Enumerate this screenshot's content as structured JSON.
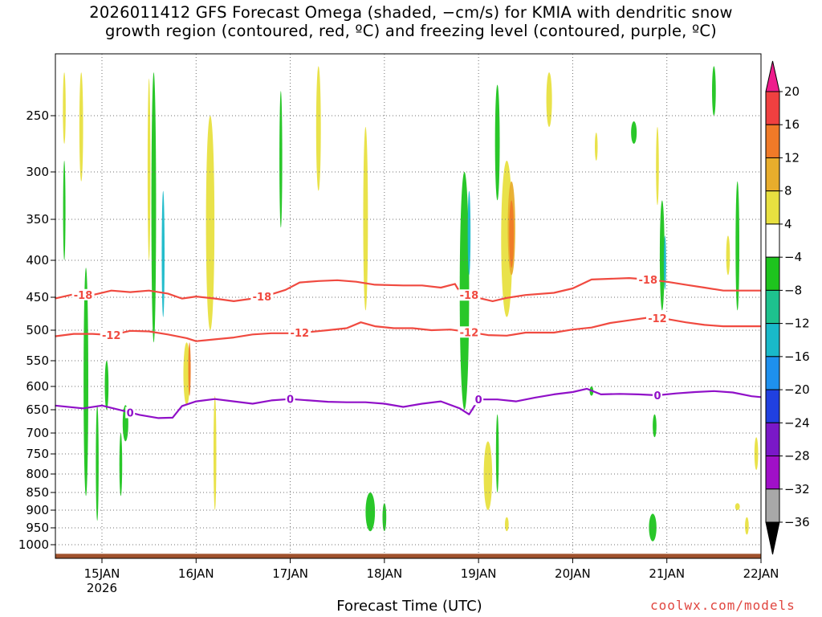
{
  "title": {
    "line1": "2026011412 GFS Forecast Omega (shaded, −cm/s) for KMIA with dendritic snow",
    "line2": "growth region (contoured, red, ºC) and freezing level (contoured, purple, ºC)"
  },
  "xlabel": "Forecast Time (UTC)",
  "credit": "coolwx.com/models",
  "chart_data": {
    "type": "heatmap",
    "title": "2026011412 GFS Forecast Omega (shaded, −cm/s) for KMIA with dendritic snow growth region (contoured, red, ºC) and freezing level (contoured, purple, ºC)",
    "xlabel": "Forecast Time (UTC)",
    "ylabel": "",
    "x_ticks": [
      "15JAN",
      "16JAN",
      "17JAN",
      "18JAN",
      "19JAN",
      "20JAN",
      "21JAN",
      "22JAN"
    ],
    "x_year_label": "2026",
    "x_range_days": [
      14.5,
      22.0
    ],
    "y_ticks": [
      250,
      300,
      350,
      400,
      450,
      500,
      550,
      600,
      650,
      700,
      750,
      800,
      850,
      900,
      950,
      1000
    ],
    "y_range_hpa": [
      200,
      1015
    ],
    "grid": true,
    "colorbar": {
      "labels": [
        "20",
        "16",
        "12",
        "8",
        "4",
        "−4",
        "−8",
        "−12",
        "−16",
        "−20",
        "−24",
        "−28",
        "−32",
        "−36"
      ],
      "colors": [
        "#ee1c8c",
        "#f04040",
        "#f07a28",
        "#e8ad2c",
        "#e8e040",
        "#ffffff",
        "#1ec41e",
        "#1ec28e",
        "#19b9c9",
        "#1e90ee",
        "#2040e0",
        "#7a18c8",
        "#a010c8",
        "#a8a8a8",
        "#000000"
      ]
    },
    "contours": [
      {
        "name": "-18",
        "color": "#f04a40",
        "points": [
          [
            14.5,
            452
          ],
          [
            14.7,
            446
          ],
          [
            14.9,
            447
          ],
          [
            15.1,
            441
          ],
          [
            15.3,
            443
          ],
          [
            15.5,
            441
          ],
          [
            15.7,
            445
          ],
          [
            15.85,
            452
          ],
          [
            16.0,
            449
          ],
          [
            16.2,
            452
          ],
          [
            16.4,
            456
          ],
          [
            16.6,
            452
          ],
          [
            16.8,
            446
          ],
          [
            16.95,
            440
          ],
          [
            17.1,
            430
          ],
          [
            17.3,
            428
          ],
          [
            17.5,
            427
          ],
          [
            17.7,
            429
          ],
          [
            17.9,
            433
          ],
          [
            18.2,
            434
          ],
          [
            18.4,
            434
          ],
          [
            18.6,
            437
          ],
          [
            18.75,
            432
          ],
          [
            18.8,
            443
          ],
          [
            19.0,
            451
          ],
          [
            19.15,
            456
          ],
          [
            19.3,
            451
          ],
          [
            19.5,
            447
          ],
          [
            19.8,
            444
          ],
          [
            20.0,
            438
          ],
          [
            20.2,
            426
          ],
          [
            20.4,
            425
          ],
          [
            20.6,
            424
          ],
          [
            20.8,
            426
          ],
          [
            21.0,
            429
          ],
          [
            21.2,
            433
          ],
          [
            21.4,
            437
          ],
          [
            21.6,
            441
          ],
          [
            21.8,
            441
          ],
          [
            22.0,
            441
          ]
        ],
        "labels": [
          [
            14.8,
            "-18"
          ],
          [
            16.7,
            "-18"
          ],
          [
            18.9,
            "-18"
          ],
          [
            20.8,
            "-18"
          ]
        ]
      },
      {
        "name": "-12",
        "color": "#f04a40",
        "points": [
          [
            14.5,
            510
          ],
          [
            14.7,
            506
          ],
          [
            14.9,
            506
          ],
          [
            15.1,
            508
          ],
          [
            15.3,
            501
          ],
          [
            15.5,
            502
          ],
          [
            15.7,
            507
          ],
          [
            15.9,
            513
          ],
          [
            16.0,
            518
          ],
          [
            16.2,
            515
          ],
          [
            16.4,
            512
          ],
          [
            16.6,
            507
          ],
          [
            16.8,
            505
          ],
          [
            17.0,
            505
          ],
          [
            17.2,
            503
          ],
          [
            17.4,
            500
          ],
          [
            17.6,
            497
          ],
          [
            17.75,
            488
          ],
          [
            17.9,
            494
          ],
          [
            18.1,
            497
          ],
          [
            18.3,
            497
          ],
          [
            18.5,
            500
          ],
          [
            18.7,
            499
          ],
          [
            18.9,
            503
          ],
          [
            19.1,
            508
          ],
          [
            19.3,
            509
          ],
          [
            19.5,
            504
          ],
          [
            19.8,
            504
          ],
          [
            20.0,
            499
          ],
          [
            20.2,
            496
          ],
          [
            20.4,
            489
          ],
          [
            20.6,
            485
          ],
          [
            20.8,
            481
          ],
          [
            21.0,
            483
          ],
          [
            21.2,
            488
          ],
          [
            21.4,
            492
          ],
          [
            21.6,
            494
          ],
          [
            22.0,
            494
          ]
        ],
        "labels": [
          [
            15.1,
            "-12"
          ],
          [
            17.1,
            "-12"
          ],
          [
            18.9,
            "-12"
          ],
          [
            20.9,
            "-12"
          ]
        ]
      },
      {
        "name": "0",
        "color": "#9010c8",
        "points": [
          [
            14.5,
            641
          ],
          [
            14.8,
            647
          ],
          [
            15.0,
            641
          ],
          [
            15.2,
            651
          ],
          [
            15.4,
            661
          ],
          [
            15.6,
            668
          ],
          [
            15.75,
            667
          ],
          [
            15.85,
            642
          ],
          [
            16.0,
            632
          ],
          [
            16.2,
            627
          ],
          [
            16.4,
            632
          ],
          [
            16.6,
            637
          ],
          [
            16.8,
            630
          ],
          [
            17.0,
            627
          ],
          [
            17.2,
            630
          ],
          [
            17.4,
            633
          ],
          [
            17.6,
            634
          ],
          [
            17.8,
            634
          ],
          [
            18.0,
            637
          ],
          [
            18.2,
            644
          ],
          [
            18.4,
            637
          ],
          [
            18.6,
            632
          ],
          [
            18.8,
            647
          ],
          [
            18.9,
            660
          ],
          [
            19.0,
            628
          ],
          [
            19.2,
            628
          ],
          [
            19.4,
            632
          ],
          [
            19.6,
            624
          ],
          [
            19.8,
            617
          ],
          [
            20.0,
            612
          ],
          [
            20.15,
            605
          ],
          [
            20.3,
            617
          ],
          [
            20.5,
            616
          ],
          [
            20.7,
            617
          ],
          [
            20.9,
            619
          ],
          [
            21.1,
            615
          ],
          [
            21.3,
            612
          ],
          [
            21.5,
            610
          ],
          [
            21.7,
            613
          ],
          [
            21.9,
            621
          ],
          [
            22.0,
            623
          ]
        ],
        "labels": [
          [
            15.3,
            "0"
          ],
          [
            17.0,
            "0"
          ],
          [
            19.0,
            "0"
          ],
          [
            20.9,
            "0"
          ]
        ]
      }
    ],
    "shaded_regions": [
      {
        "x": 14.6,
        "p": [
          215,
          275
        ],
        "c": "#e8e040",
        "w": 0.03
      },
      {
        "x": 14.6,
        "p": [
          290,
          400
        ],
        "c": "#1ec41e",
        "w": 0.02
      },
      {
        "x": 14.78,
        "p": [
          215,
          310
        ],
        "c": "#e8e040",
        "w": 0.04
      },
      {
        "x": 14.83,
        "p": [
          410,
          860
        ],
        "c": "#1ec41e",
        "w": 0.05
      },
      {
        "x": 14.95,
        "p": [
          640,
          930
        ],
        "c": "#1ec41e",
        "w": 0.03
      },
      {
        "x": 15.05,
        "p": [
          550,
          650
        ],
        "c": "#1ec41e",
        "w": 0.04
      },
      {
        "x": 15.2,
        "p": [
          700,
          860
        ],
        "c": "#1ec41e",
        "w": 0.03
      },
      {
        "x": 15.25,
        "p": [
          640,
          720
        ],
        "c": "#1ec41e",
        "w": 0.06
      },
      {
        "x": 15.55,
        "p": [
          215,
          520
        ],
        "c": "#1ec41e",
        "w": 0.05
      },
      {
        "x": 15.65,
        "p": [
          320,
          480
        ],
        "c": "#19b9c9",
        "w": 0.03
      },
      {
        "x": 15.5,
        "p": [
          220,
          400
        ],
        "c": "#e8e040",
        "w": 0.03
      },
      {
        "x": 15.9,
        "p": [
          520,
          640
        ],
        "c": "#e8e040",
        "w": 0.07
      },
      {
        "x": 15.93,
        "p": [
          520,
          620
        ],
        "c": "#f07a28",
        "w": 0.02
      },
      {
        "x": 16.15,
        "p": [
          250,
          500
        ],
        "c": "#e8e040",
        "w": 0.09
      },
      {
        "x": 16.2,
        "p": [
          620,
          900
        ],
        "c": "#e8e040",
        "w": 0.03
      },
      {
        "x": 16.9,
        "p": [
          230,
          360
        ],
        "c": "#1ec41e",
        "w": 0.03
      },
      {
        "x": 17.3,
        "p": [
          210,
          320
        ],
        "c": "#e8e040",
        "w": 0.05
      },
      {
        "x": 17.8,
        "p": [
          260,
          470
        ],
        "c": "#e8e040",
        "w": 0.05
      },
      {
        "x": 17.85,
        "p": [
          850,
          960
        ],
        "c": "#1ec41e",
        "w": 0.1
      },
      {
        "x": 18.0,
        "p": [
          880,
          960
        ],
        "c": "#1ec41e",
        "w": 0.04
      },
      {
        "x": 18.85,
        "p": [
          300,
          650
        ],
        "c": "#1ec41e",
        "w": 0.1
      },
      {
        "x": 18.9,
        "p": [
          320,
          420
        ],
        "c": "#19b9c9",
        "w": 0.03
      },
      {
        "x": 19.1,
        "p": [
          720,
          900
        ],
        "c": "#e8e040",
        "w": 0.09
      },
      {
        "x": 19.3,
        "p": [
          290,
          480
        ],
        "c": "#e8e040",
        "w": 0.12
      },
      {
        "x": 19.35,
        "p": [
          310,
          420
        ],
        "c": "#e8ad2c",
        "w": 0.08
      },
      {
        "x": 19.35,
        "p": [
          330,
          410
        ],
        "c": "#f07a28",
        "w": 0.05
      },
      {
        "x": 19.2,
        "p": [
          225,
          330
        ],
        "c": "#1ec41e",
        "w": 0.05
      },
      {
        "x": 19.3,
        "p": [
          920,
          960
        ],
        "c": "#e8e040",
        "w": 0.04
      },
      {
        "x": 19.2,
        "p": [
          660,
          850
        ],
        "c": "#1ec41e",
        "w": 0.03
      },
      {
        "x": 19.75,
        "p": [
          215,
          260
        ],
        "c": "#e8e040",
        "w": 0.06
      },
      {
        "x": 20.25,
        "p": [
          265,
          290
        ],
        "c": "#e8e040",
        "w": 0.03
      },
      {
        "x": 20.2,
        "p": [
          600,
          620
        ],
        "c": "#1ec41e",
        "w": 0.04
      },
      {
        "x": 20.65,
        "p": [
          255,
          275
        ],
        "c": "#1ec41e",
        "w": 0.06
      },
      {
        "x": 20.9,
        "p": [
          260,
          335
        ],
        "c": "#e8e040",
        "w": 0.03
      },
      {
        "x": 20.95,
        "p": [
          330,
          470
        ],
        "c": "#1ec41e",
        "w": 0.05
      },
      {
        "x": 20.98,
        "p": [
          370,
          440
        ],
        "c": "#19b9c9",
        "w": 0.02
      },
      {
        "x": 20.87,
        "p": [
          660,
          710
        ],
        "c": "#1ec41e",
        "w": 0.04
      },
      {
        "x": 20.85,
        "p": [
          910,
          990
        ],
        "c": "#1ec41e",
        "w": 0.08
      },
      {
        "x": 21.5,
        "p": [
          210,
          250
        ],
        "c": "#1ec41e",
        "w": 0.04
      },
      {
        "x": 21.65,
        "p": [
          370,
          420
        ],
        "c": "#e8e040",
        "w": 0.04
      },
      {
        "x": 21.75,
        "p": [
          310,
          470
        ],
        "c": "#1ec41e",
        "w": 0.04
      },
      {
        "x": 21.75,
        "p": [
          880,
          900
        ],
        "c": "#e8e040",
        "w": 0.05
      },
      {
        "x": 21.85,
        "p": [
          920,
          970
        ],
        "c": "#e8e040",
        "w": 0.04
      },
      {
        "x": 21.95,
        "p": [
          710,
          790
        ],
        "c": "#e8e040",
        "w": 0.04
      }
    ],
    "terrain": {
      "color": "#a0522d",
      "top_hpa": 1010
    }
  }
}
